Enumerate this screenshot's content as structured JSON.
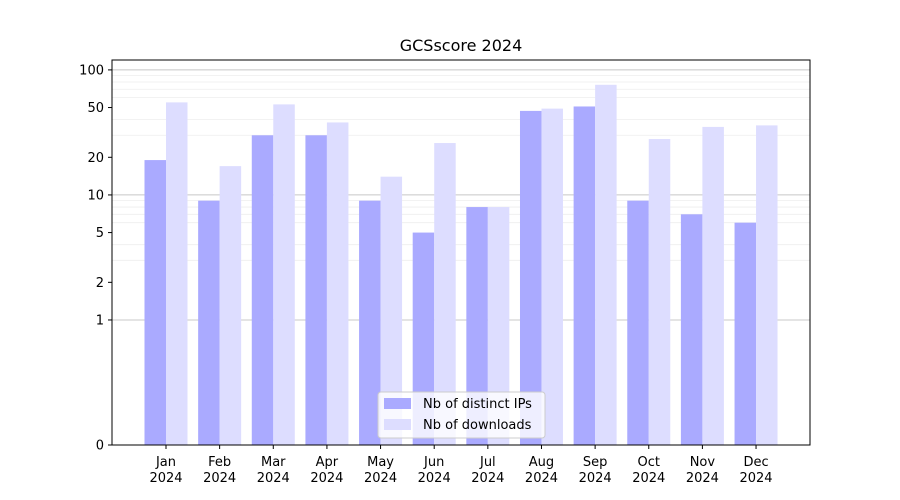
{
  "chart_data": {
    "type": "bar",
    "title": "GCSscore 2024",
    "xlabel": "",
    "ylabel": "",
    "yscale": "symlog",
    "ylim": [
      0,
      120
    ],
    "yticks": [
      0,
      1,
      2,
      5,
      10,
      20,
      50,
      100
    ],
    "ytick_labels": [
      "0",
      "1",
      "2",
      "5",
      "10",
      "20",
      "50",
      "100"
    ],
    "categories": [
      "Jan",
      "Feb",
      "Mar",
      "Apr",
      "May",
      "Jun",
      "Jul",
      "Aug",
      "Sep",
      "Oct",
      "Nov",
      "Dec"
    ],
    "category_year": "2024",
    "series": [
      {
        "name": "Nb of distinct IPs",
        "color": "#aaaaff",
        "values": [
          19,
          9,
          30,
          30,
          9,
          5,
          8,
          47,
          51,
          9,
          7,
          6
        ]
      },
      {
        "name": "Nb of downloads",
        "color": "#ddddff",
        "values": [
          55,
          17,
          53,
          38,
          14,
          26,
          8,
          49,
          76,
          28,
          35,
          36
        ]
      }
    ],
    "grid": true,
    "legend_position": "lower center"
  }
}
